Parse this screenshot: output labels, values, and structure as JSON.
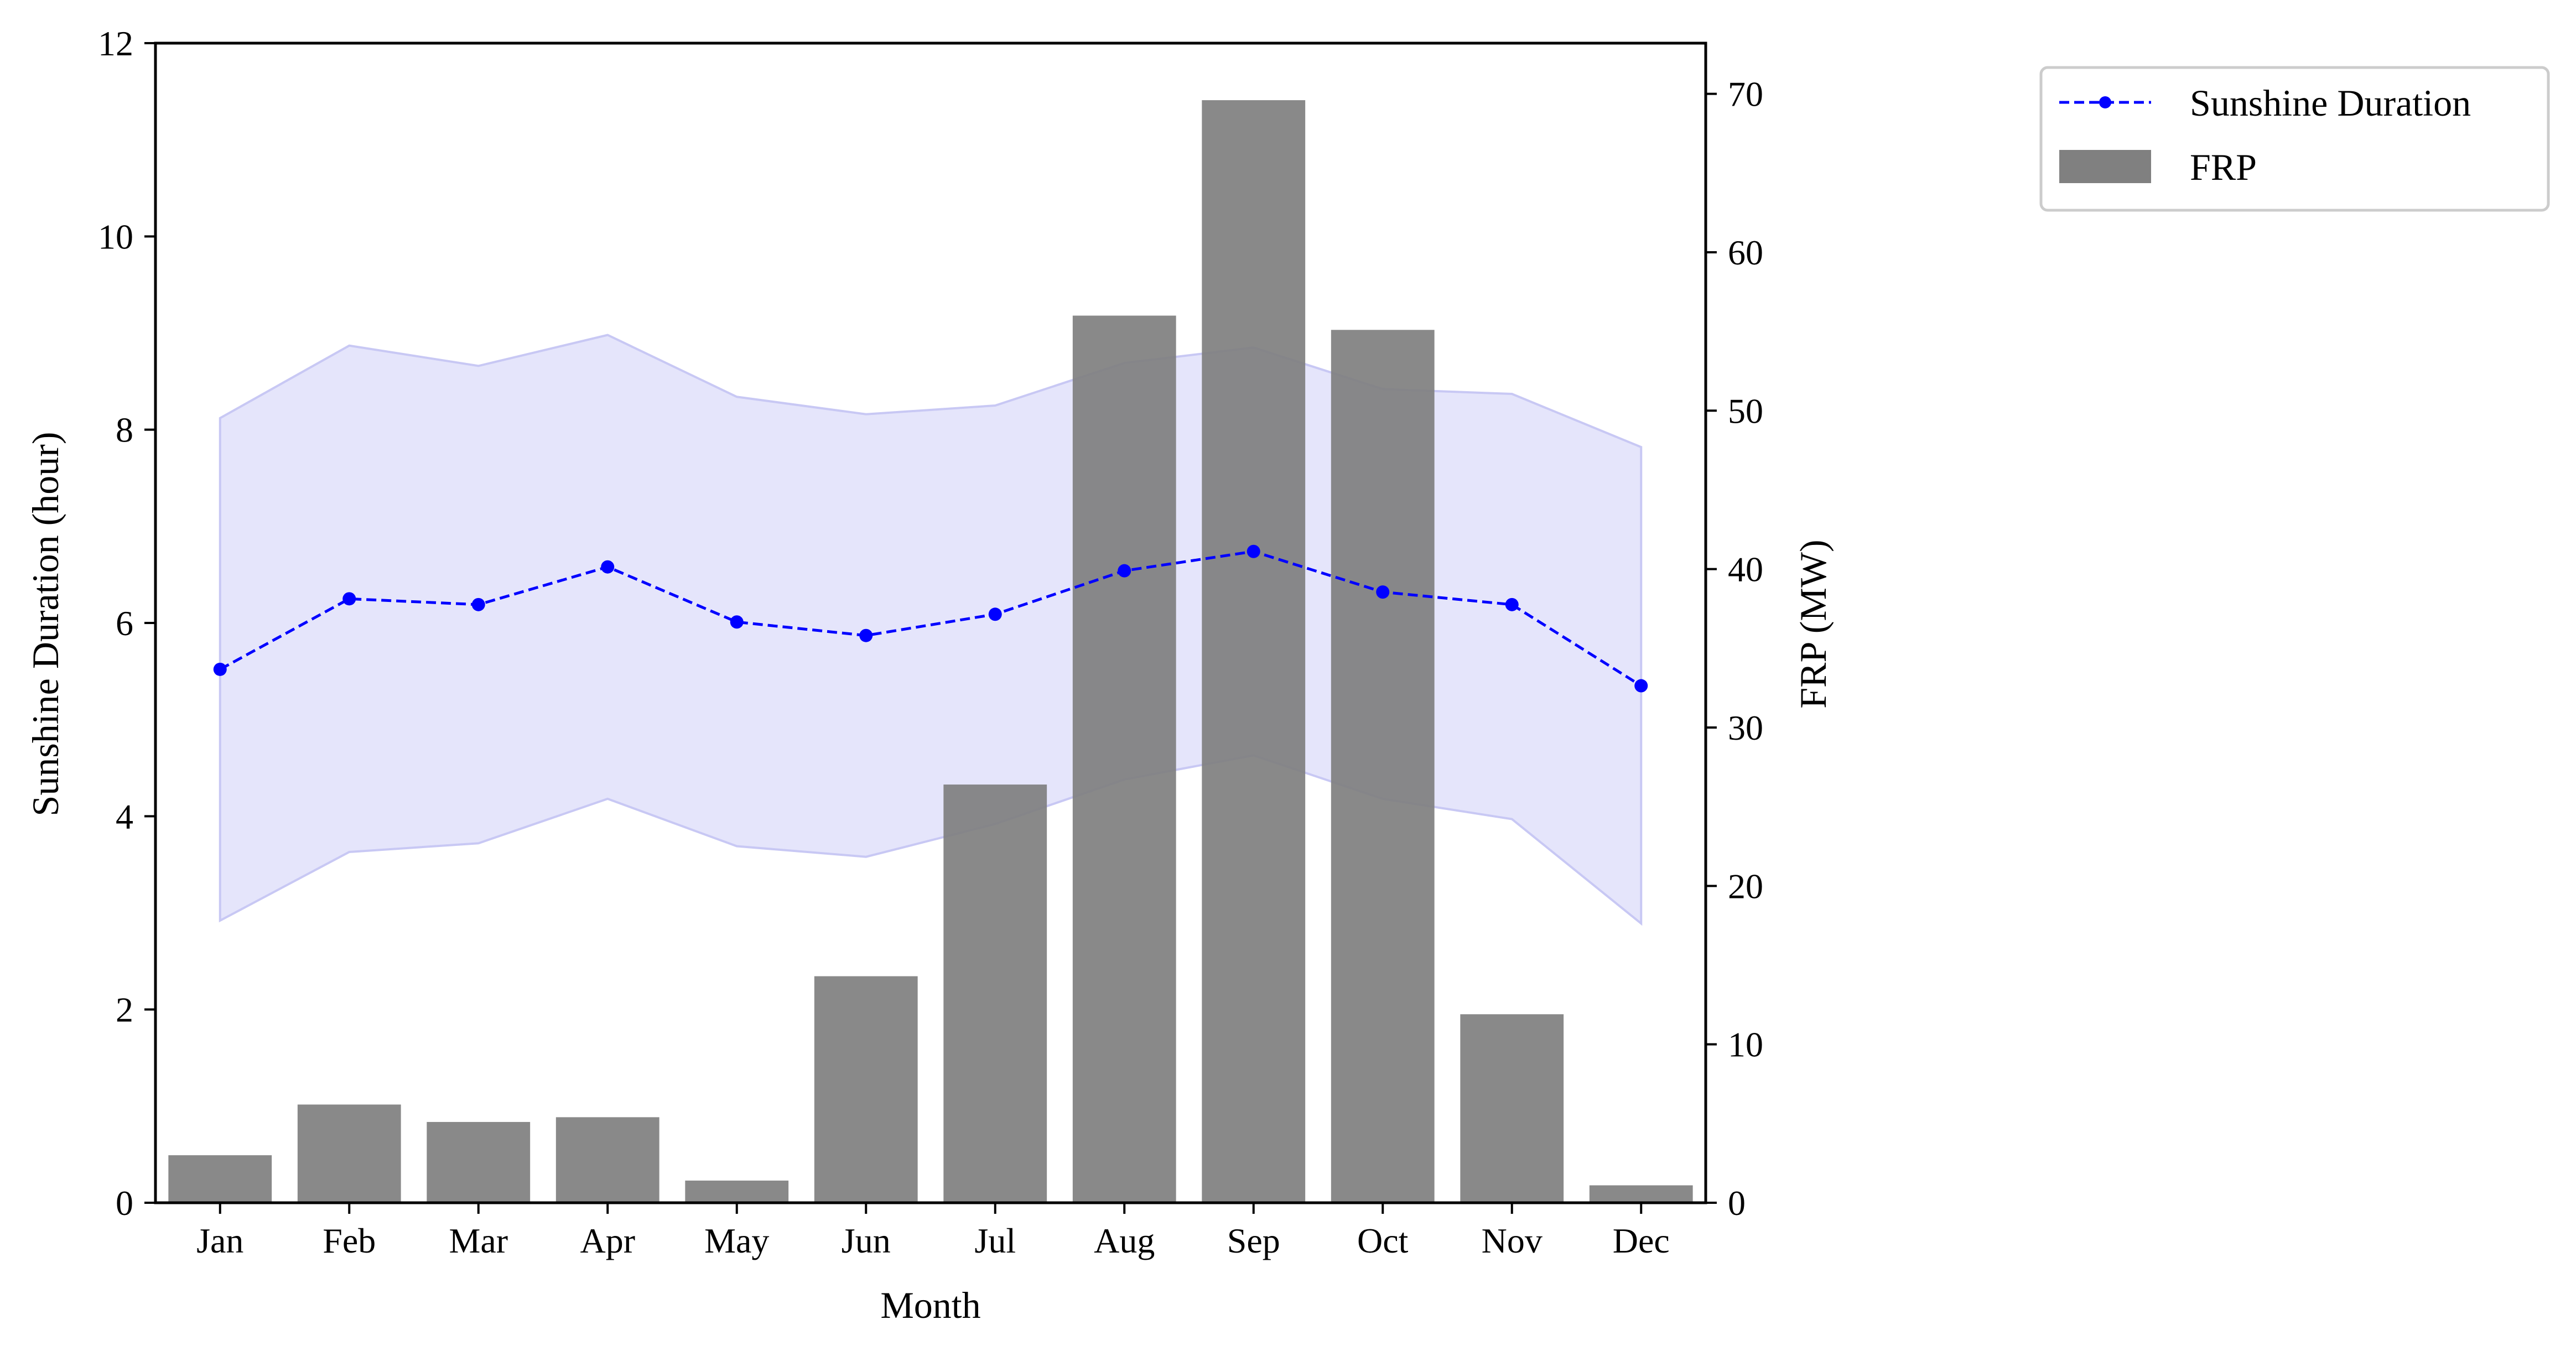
{
  "chart_data": {
    "type": "bar",
    "categories": [
      "Jan",
      "Feb",
      "Mar",
      "Apr",
      "May",
      "Jun",
      "Jul",
      "Aug",
      "Sep",
      "Oct",
      "Nov",
      "Dec"
    ],
    "xlabel": "Month",
    "ylabel_left": "Sunshine Duration (hour)",
    "ylabel_right": "FRP (MW)",
    "ylim_left": [
      0,
      12
    ],
    "ylim_right": [
      0,
      73.2
    ],
    "yticks_left": [
      0,
      2,
      4,
      6,
      8,
      10,
      12
    ],
    "yticks_right": [
      0,
      10,
      20,
      30,
      40,
      50,
      60,
      70
    ],
    "grid": false,
    "legend_position": "outside top-right",
    "series": [
      {
        "name": "Sunshine Duration",
        "type": "line",
        "axis": "left",
        "style": "dashed with circle markers",
        "color": "#0000ff",
        "values": [
          5.52,
          6.25,
          6.19,
          6.58,
          6.01,
          5.87,
          6.09,
          6.54,
          6.74,
          6.32,
          6.19,
          5.35
        ],
        "band_lower": [
          2.92,
          3.63,
          3.72,
          4.18,
          3.69,
          3.58,
          3.92,
          4.38,
          4.63,
          4.18,
          3.97,
          2.89
        ],
        "band_upper": [
          8.12,
          8.87,
          8.66,
          8.98,
          8.34,
          8.16,
          8.25,
          8.69,
          8.85,
          8.42,
          8.37,
          7.82
        ],
        "band_color": "#e4e4fb"
      },
      {
        "name": "FRP",
        "type": "bar",
        "axis": "right",
        "color": "#808080",
        "values": [
          3.0,
          6.2,
          5.1,
          5.4,
          1.4,
          14.3,
          26.4,
          56.0,
          69.6,
          55.1,
          11.9,
          1.1
        ]
      }
    ]
  }
}
